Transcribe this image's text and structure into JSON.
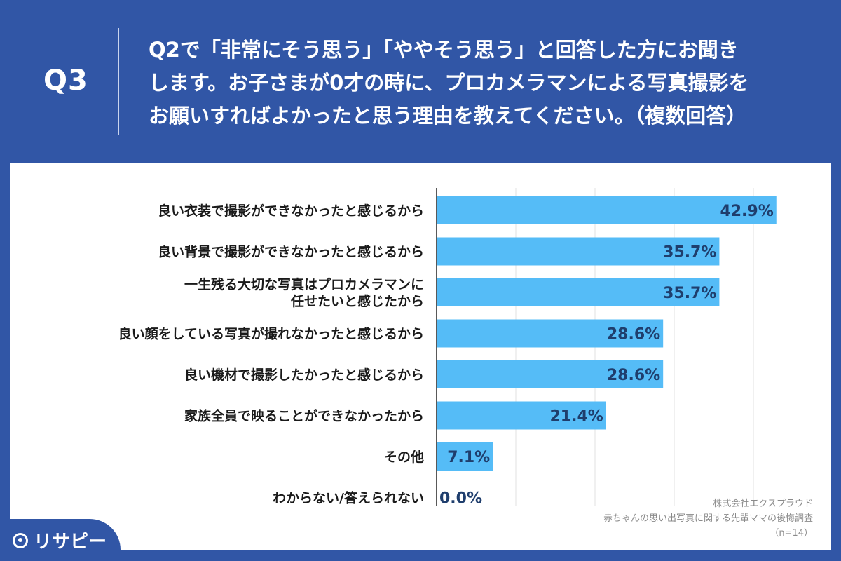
{
  "header": {
    "q_number": "Q3",
    "question": "Q2で「非常にそう思う」「ややそう思う」と回答した方にお聞き\nします。お子さまが0才の時に、プロカメラマンによる写真撮影を\nお願いすればよかったと思う理由を教えてください。（複数回答）"
  },
  "chart_data": {
    "type": "bar",
    "orientation": "horizontal",
    "categories": [
      [
        "良い衣装で撮影ができなかったと感じるから"
      ],
      [
        "良い背景で撮影ができなかったと感じるから"
      ],
      [
        "一生残る大切な写真はプロカメラマンに",
        "任せたいと感じたから"
      ],
      [
        "良い顔をしている写真が撮れなかったと感じるから"
      ],
      [
        "良い機材で撮影したかったと感じるから"
      ],
      [
        "家族全員で映ることができなかったから"
      ],
      [
        "その他"
      ],
      [
        "わからない/答えられない"
      ]
    ],
    "values": [
      42.9,
      35.7,
      35.7,
      28.6,
      28.6,
      21.4,
      7.1,
      0.0
    ],
    "value_labels": [
      "42.9%",
      "35.7%",
      "35.7%",
      "28.6%",
      "28.6%",
      "21.4%",
      "7.1%",
      "0.0%"
    ],
    "xlim": [
      0,
      50
    ],
    "grid": true,
    "bar_color": "#55bcf7"
  },
  "source": {
    "company": "株式会社エクスプラウド",
    "survey": "赤ちゃんの思い出写真に関する先輩ママの後悔調査",
    "sample": "（n=14）"
  },
  "logo": {
    "text": "リサピー"
  }
}
